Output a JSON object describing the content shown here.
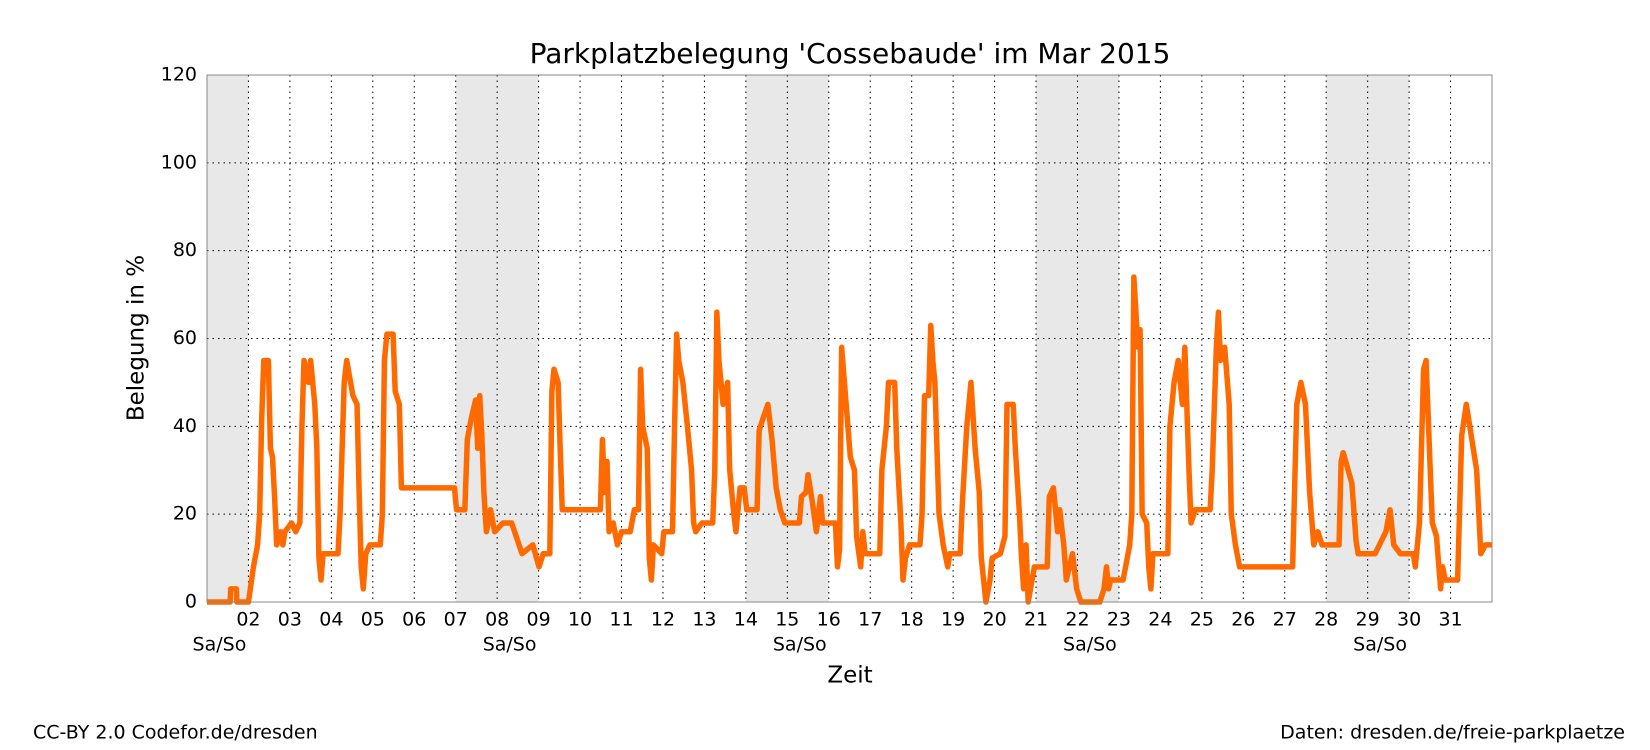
{
  "chart_data": {
    "type": "line",
    "title": "Parkplatzbelegung 'Cossebaude' im Mar 2015",
    "xlabel": "Zeit",
    "ylabel": "Belegung in %",
    "xlim": [
      1,
      32
    ],
    "ylim": [
      0,
      120
    ],
    "xticks": [
      {
        "value": 2,
        "label": "02"
      },
      {
        "value": 3,
        "label": "03"
      },
      {
        "value": 4,
        "label": "04"
      },
      {
        "value": 5,
        "label": "05"
      },
      {
        "value": 6,
        "label": "06"
      },
      {
        "value": 7,
        "label": "07"
      },
      {
        "value": 8,
        "label": "08"
      },
      {
        "value": 9,
        "label": "09"
      },
      10,
      11,
      12,
      13,
      14,
      15,
      16,
      17,
      18,
      19,
      20,
      21,
      22,
      23,
      24,
      25,
      26,
      27,
      28,
      29,
      30,
      31
    ],
    "yticks": [
      0,
      20,
      40,
      60,
      80,
      100,
      120
    ],
    "grid": true,
    "color": "#ff6a00",
    "weekends": [
      {
        "start": 1,
        "end": 2,
        "label": "Sa/So"
      },
      {
        "start": 7,
        "end": 9,
        "label": "Sa/So"
      },
      {
        "start": 14,
        "end": 16,
        "label": "Sa/So"
      },
      {
        "start": 21,
        "end": 23,
        "label": "Sa/So"
      },
      {
        "start": 28,
        "end": 30,
        "label": "Sa/So"
      }
    ],
    "x": [
      1.0,
      1.56,
      1.57,
      1.71,
      1.72,
      2.0,
      2.12,
      2.22,
      2.27,
      2.32,
      2.37,
      2.48,
      2.53,
      2.58,
      2.63,
      2.68,
      2.78,
      2.83,
      2.88,
      3.04,
      3.14,
      3.24,
      3.29,
      3.34,
      3.45,
      3.5,
      3.6,
      3.65,
      3.7,
      3.75,
      3.8,
      4.16,
      4.21,
      4.31,
      4.37,
      4.52,
      4.62,
      4.67,
      4.72,
      4.77,
      4.83,
      4.93,
      5.18,
      5.23,
      5.28,
      5.34,
      5.49,
      5.54,
      5.64,
      5.69,
      6.97,
      7.02,
      7.22,
      7.28,
      7.38,
      7.48,
      7.53,
      7.58,
      7.63,
      7.68,
      7.74,
      7.84,
      7.94,
      8.14,
      8.35,
      8.6,
      8.86,
      9.01,
      9.11,
      9.27,
      9.32,
      9.37,
      9.47,
      9.52,
      9.57,
      10.49,
      10.54,
      10.59,
      10.65,
      10.7,
      10.8,
      10.9,
      11.0,
      11.21,
      11.31,
      11.41,
      11.46,
      11.51,
      11.62,
      11.67,
      11.72,
      11.77,
      11.97,
      12.02,
      12.23,
      12.28,
      12.33,
      12.38,
      12.48,
      12.59,
      12.69,
      12.74,
      12.79,
      12.94,
      13.2,
      13.25,
      13.3,
      13.35,
      13.45,
      13.56,
      13.61,
      13.71,
      13.76,
      13.86,
      13.96,
      14.02,
      14.27,
      14.32,
      14.42,
      14.53,
      14.63,
      14.73,
      14.83,
      14.94,
      15.29,
      15.34,
      15.45,
      15.5,
      15.6,
      15.7,
      15.8,
      15.85,
      16.16,
      16.21,
      16.26,
      16.31,
      16.42,
      16.52,
      16.62,
      16.67,
      16.77,
      16.82,
      16.88,
      17.23,
      17.28,
      17.39,
      17.44,
      17.59,
      17.64,
      17.74,
      17.79,
      17.85,
      17.95,
      18.2,
      18.25,
      18.31,
      18.41,
      18.46,
      18.51,
      18.56,
      18.61,
      18.66,
      18.76,
      18.87,
      18.92,
      19.17,
      19.22,
      19.33,
      19.43,
      19.53,
      19.63,
      19.68,
      19.79,
      19.89,
      19.94,
      20.14,
      20.25,
      20.3,
      20.45,
      20.5,
      20.6,
      20.65,
      20.7,
      20.76,
      20.81,
      20.96,
      21.27,
      21.32,
      21.42,
      21.52,
      21.57,
      21.67,
      21.73,
      21.88,
      21.98,
      22.08,
      22.54,
      22.64,
      22.7,
      22.75,
      22.8,
      23.1,
      23.16,
      23.26,
      23.31,
      23.36,
      23.46,
      23.51,
      23.56,
      23.67,
      23.72,
      23.77,
      23.82,
      24.18,
      24.23,
      24.33,
      24.43,
      24.53,
      24.59,
      24.69,
      24.74,
      24.84,
      25.2,
      25.25,
      25.35,
      25.4,
      25.45,
      25.55,
      25.66,
      25.71,
      25.81,
      25.91,
      27.19,
      27.29,
      27.39,
      27.5,
      27.6,
      27.7,
      27.8,
      27.9,
      28.06,
      28.31,
      28.36,
      28.41,
      28.62,
      28.72,
      28.77,
      29.18,
      29.44,
      29.54,
      29.63,
      29.79,
      30.1,
      30.15,
      30.25,
      30.35,
      30.41,
      30.51,
      30.56,
      30.66,
      30.76,
      30.81,
      30.87,
      31.17,
      31.27,
      31.38,
      31.48,
      31.63,
      31.73,
      31.84,
      32.0
    ],
    "values": [
      0,
      0,
      3,
      3,
      0,
      0,
      8,
      13,
      20,
      42,
      55,
      55,
      35,
      33,
      24,
      13,
      16,
      13,
      16,
      18,
      16,
      18,
      40,
      55,
      50,
      55,
      45,
      35,
      10,
      5,
      11,
      11,
      20,
      50,
      55,
      47,
      45,
      25,
      8,
      3,
      11,
      13,
      13,
      20,
      55,
      61,
      61,
      48,
      45,
      26,
      26,
      21,
      21,
      37,
      42,
      46,
      35,
      47,
      38,
      25,
      16,
      21,
      16,
      18,
      18,
      11,
      13,
      8,
      11,
      11,
      48,
      53,
      50,
      35,
      21,
      21,
      37,
      25,
      32,
      16,
      18,
      13,
      16,
      16,
      21,
      21,
      53,
      40,
      35,
      10,
      5,
      13,
      11,
      16,
      16,
      40,
      61,
      55,
      50,
      40,
      30,
      18,
      16,
      18,
      18,
      30,
      66,
      55,
      45,
      50,
      30,
      20,
      16,
      26,
      26,
      21,
      21,
      39,
      42,
      45,
      37,
      26,
      21,
      18,
      18,
      24,
      25,
      29,
      23,
      16,
      24,
      18,
      18,
      8,
      12,
      58,
      45,
      33,
      30,
      15,
      8,
      16,
      11,
      11,
      30,
      40,
      50,
      50,
      35,
      18,
      5,
      10,
      13,
      13,
      20,
      47,
      47,
      63,
      55,
      50,
      35,
      20,
      13,
      8,
      11,
      11,
      22,
      40,
      50,
      35,
      25,
      10,
      0,
      5,
      10,
      11,
      15,
      45,
      45,
      35,
      20,
      10,
      3,
      13,
      0,
      8,
      8,
      24,
      26,
      16,
      21,
      13,
      5,
      11,
      3,
      0,
      0,
      3,
      8,
      3,
      5,
      5,
      8,
      13,
      20,
      74,
      58,
      62,
      20,
      18,
      8,
      3,
      11,
      11,
      40,
      50,
      55,
      45,
      58,
      30,
      18,
      21,
      21,
      30,
      58,
      66,
      55,
      58,
      45,
      20,
      13,
      8,
      8,
      45,
      50,
      45,
      25,
      13,
      16,
      13,
      13,
      13,
      32,
      34,
      27,
      14,
      11,
      11,
      16,
      21,
      13,
      11,
      11,
      8,
      18,
      53,
      55,
      30,
      18,
      15,
      3,
      8,
      5,
      5,
      38,
      45,
      39,
      30,
      11,
      13,
      13
    ]
  },
  "footer": {
    "left": "CC-BY 2.0 Codefor.de/dresden",
    "right": "Daten: dresden.de/freie-parkplaetze"
  }
}
